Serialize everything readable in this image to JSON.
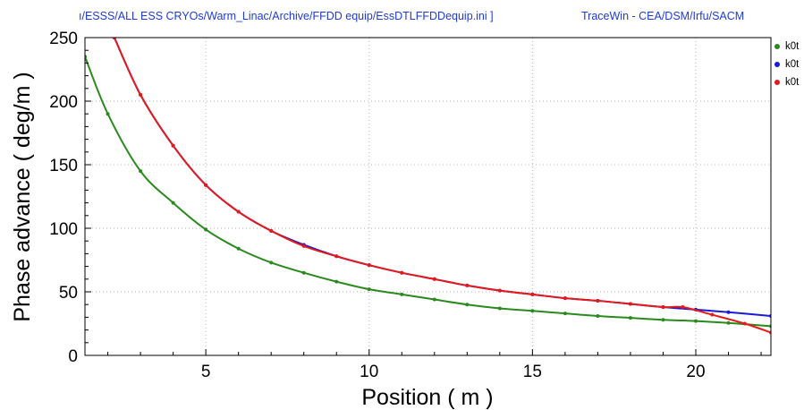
{
  "header": {
    "path": "ı/ESSS/ALL ESS CRYOs/Warm_Linac/Archive/FFDD equip/EssDTLFFDDequip.ini ]",
    "app": "TraceWin - CEA/DSM/Irfu/SACM"
  },
  "chart_data": {
    "type": "line",
    "title": "",
    "xlabel": "Position ( m )",
    "ylabel": "Phase advance ( deg/m )",
    "xlim": [
      1.3,
      22.3
    ],
    "ylim": [
      0,
      250
    ],
    "xticks": [
      5,
      10,
      15,
      20
    ],
    "yticks": [
      0,
      50,
      100,
      150,
      200,
      250
    ],
    "grid": true,
    "legend_position": "right",
    "series": [
      {
        "name": "k0t",
        "color": "#2a8a1e",
        "x": [
          1.3,
          2.0,
          3.0,
          4.0,
          5.0,
          6.0,
          7.0,
          8.0,
          9.0,
          10.0,
          11.0,
          12.0,
          13.0,
          14.0,
          15.0,
          16.0,
          17.0,
          18.0,
          19.0,
          20.0,
          21.0,
          22.3
        ],
        "y": [
          235,
          190,
          145,
          120,
          99,
          84,
          73,
          65,
          58,
          52,
          48,
          44,
          40,
          37,
          35,
          33,
          31,
          29.5,
          28,
          27,
          25.5,
          23
        ]
      },
      {
        "name": "k0t",
        "color": "#1a1ad8",
        "x": [
          2.2,
          3.0,
          4.0,
          5.0,
          6.0,
          7.0,
          8.0,
          9.0,
          10.0,
          11.0,
          12.0,
          13.0,
          14.0,
          15.0,
          16.0,
          17.0,
          18.0,
          19.0,
          20.0,
          21.0,
          22.3
        ],
        "y": [
          250,
          205,
          165,
          134,
          113,
          98,
          87,
          78,
          71,
          65,
          60,
          55,
          51,
          48,
          45,
          43,
          40.5,
          38,
          36,
          34,
          31
        ]
      },
      {
        "name": "k0t",
        "color": "#e51a1a",
        "x": [
          2.2,
          3.0,
          4.0,
          5.0,
          6.0,
          7.0,
          8.0,
          9.0,
          10.0,
          11.0,
          12.0,
          13.0,
          14.0,
          15.0,
          16.0,
          17.0,
          18.0,
          19.0,
          19.6,
          20.5,
          21.5,
          22.3
        ],
        "y": [
          250,
          205,
          165,
          134,
          113,
          98,
          86,
          78,
          71,
          65,
          60,
          55,
          51,
          48,
          45,
          43,
          40.5,
          38,
          38,
          32,
          25,
          18
        ]
      }
    ]
  }
}
